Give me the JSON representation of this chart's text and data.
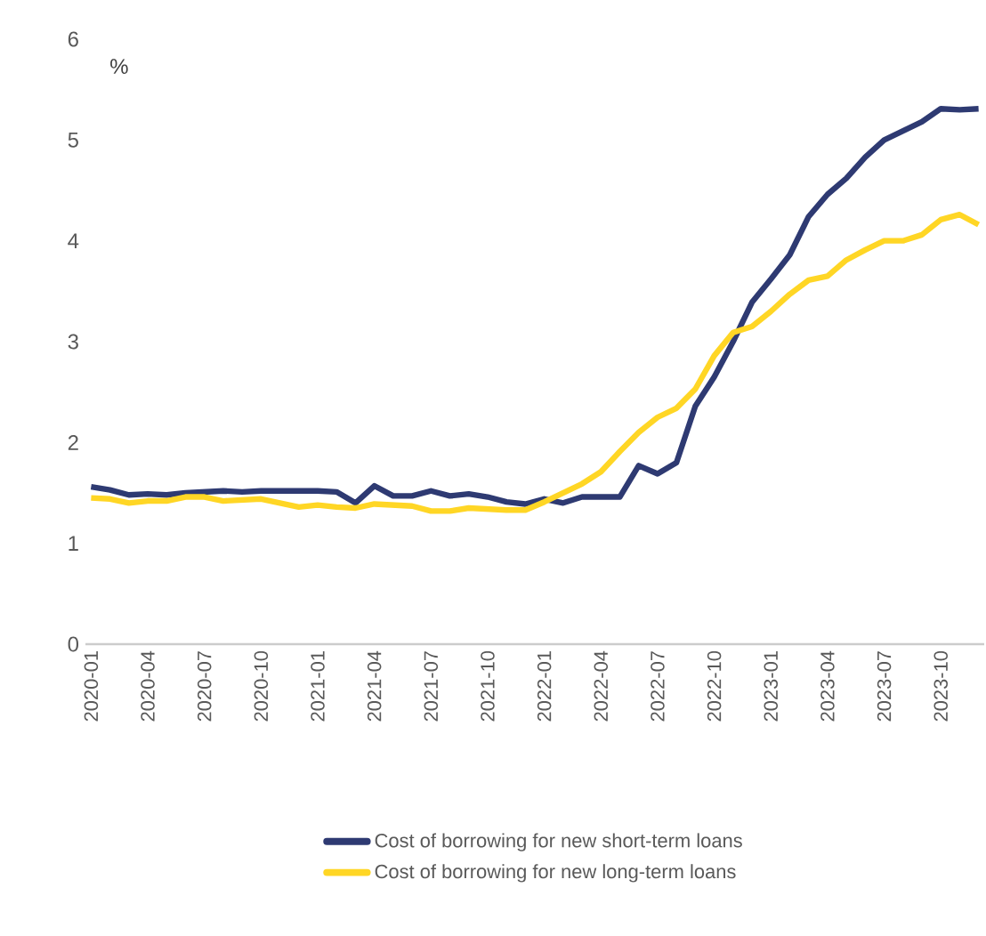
{
  "chart_data": {
    "type": "line",
    "ylabel": "%",
    "categories": [
      "2020-01",
      null,
      null,
      "2020-04",
      null,
      null,
      "2020-07",
      null,
      null,
      "2020-10",
      null,
      null,
      "2021-01",
      null,
      null,
      "2021-04",
      null,
      null,
      "2021-07",
      null,
      null,
      "2021-10",
      null,
      null,
      "2022-01",
      null,
      null,
      "2022-04",
      null,
      null,
      "2022-07",
      null,
      null,
      "2022-10",
      null,
      null,
      "2023-01",
      null,
      null,
      "2023-04",
      null,
      null,
      "2023-07",
      null,
      null,
      "2023-10",
      null,
      null
    ],
    "series": [
      {
        "name": "Cost of borrowing for new short-term loans",
        "color": "#2e3a72",
        "values": [
          1.56,
          1.53,
          1.48,
          1.49,
          1.48,
          1.5,
          1.51,
          1.52,
          1.51,
          1.52,
          1.52,
          1.52,
          1.52,
          1.51,
          1.4,
          1.57,
          1.47,
          1.47,
          1.52,
          1.47,
          1.49,
          1.46,
          1.41,
          1.39,
          1.44,
          1.4,
          1.46,
          1.46,
          1.46,
          1.77,
          1.69,
          1.8,
          2.36,
          2.65,
          3.0,
          3.39,
          3.62,
          3.86,
          4.24,
          4.46,
          4.62,
          4.83,
          5.0,
          5.09,
          5.18,
          5.31,
          5.3,
          5.31
        ]
      },
      {
        "name": "Cost of borrowing for new long-term loans",
        "color": "#ffd625",
        "values": [
          1.45,
          1.44,
          1.4,
          1.42,
          1.42,
          1.46,
          1.46,
          1.42,
          1.43,
          1.44,
          1.4,
          1.36,
          1.38,
          1.36,
          1.35,
          1.39,
          1.38,
          1.37,
          1.32,
          1.32,
          1.35,
          1.34,
          1.33,
          1.33,
          1.41,
          1.5,
          1.59,
          1.71,
          1.91,
          2.1,
          2.25,
          2.34,
          2.53,
          2.86,
          3.09,
          3.15,
          3.3,
          3.47,
          3.61,
          3.65,
          3.81,
          3.91,
          4.0,
          4.0,
          4.06,
          4.21,
          4.26,
          4.16
        ]
      }
    ],
    "ylim": [
      0,
      6
    ],
    "yticks": [
      0,
      1,
      2,
      3,
      4,
      5,
      6
    ],
    "grid": false,
    "legend": "bottom",
    "marker": "none",
    "line_style": "solid"
  }
}
